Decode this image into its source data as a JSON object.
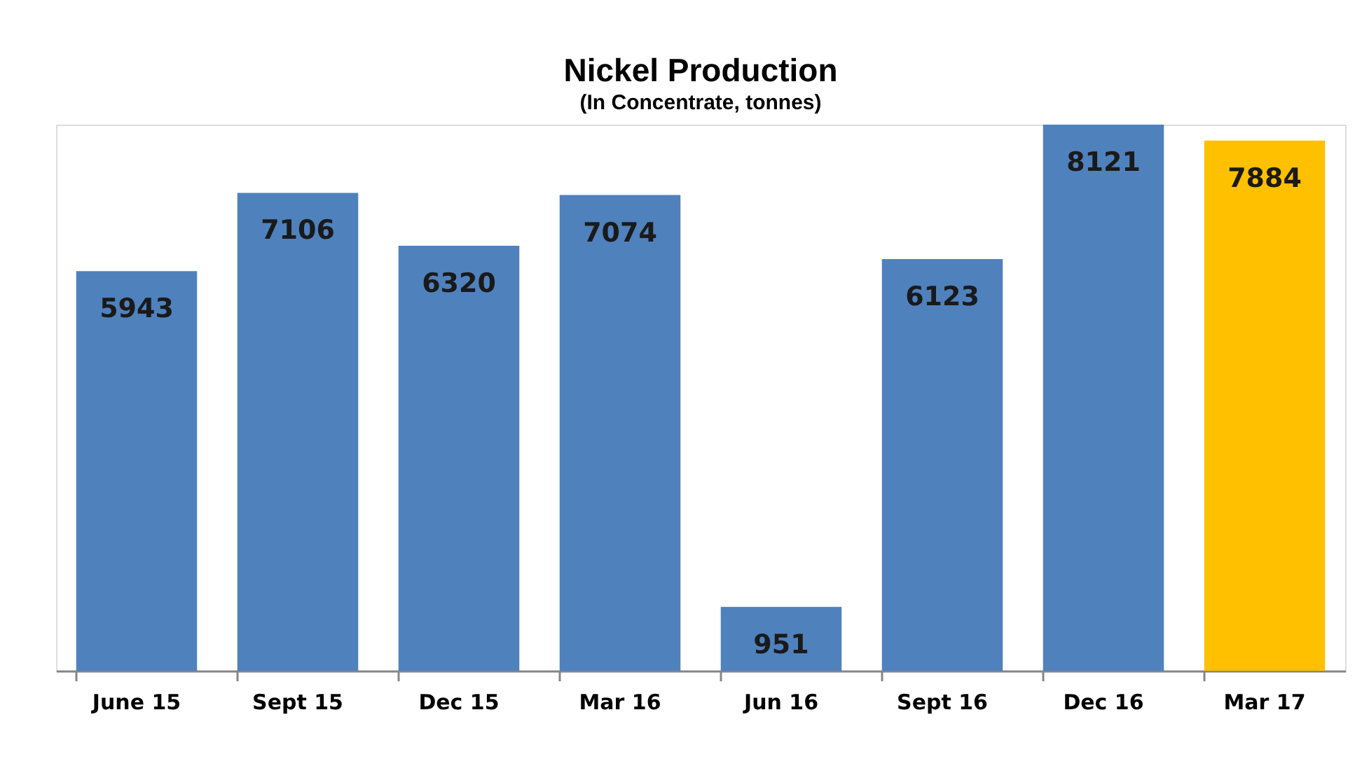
{
  "chart_data": {
    "type": "bar",
    "title": "Nickel Production",
    "subtitle": "(In Concentrate, tonnes)",
    "categories": [
      "June 15",
      "Sept 15",
      "Dec 15",
      "Mar 16",
      "Jun 16",
      "Sept 16",
      "Dec 16",
      "Mar 17"
    ],
    "values": [
      5943,
      7106,
      6320,
      7074,
      951,
      6123,
      8121,
      7884
    ],
    "colors": [
      "#4f81bd",
      "#4f81bd",
      "#4f81bd",
      "#4f81bd",
      "#4f81bd",
      "#4f81bd",
      "#4f81bd",
      "#ffc000"
    ],
    "data_labels": true
  }
}
